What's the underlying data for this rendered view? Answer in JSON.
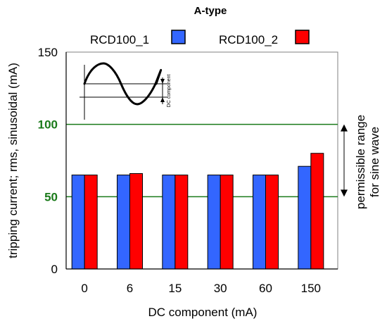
{
  "chart_data": {
    "type": "bar",
    "title": "A-type",
    "xlabel": "DC component (mA)",
    "ylabel": "tripping current; rms, sinusoidal (mA)",
    "categories": [
      "0",
      "6",
      "15",
      "30",
      "60",
      "150"
    ],
    "series": [
      {
        "name": "RCD100_1",
        "color": "#3366ff",
        "values": [
          65,
          65,
          65,
          65,
          65,
          71
        ]
      },
      {
        "name": "RCD100_2",
        "color": "#ff0000",
        "values": [
          65,
          66,
          65,
          65,
          65,
          80
        ]
      }
    ],
    "ylim": [
      0,
      150
    ],
    "yticks": [
      "0",
      "50",
      "100",
      "150"
    ],
    "reference_lines": [
      {
        "value": 100,
        "label": "100",
        "color": "#1a7a1a"
      },
      {
        "value": 50,
        "label": "50",
        "color": "#1a7a1a"
      }
    ],
    "range_annotation": {
      "from": 50,
      "to": 100,
      "lines": [
        "permissible range",
        "for sine wave"
      ]
    },
    "inset": {
      "label": "DC component"
    },
    "legend_position": "top"
  }
}
